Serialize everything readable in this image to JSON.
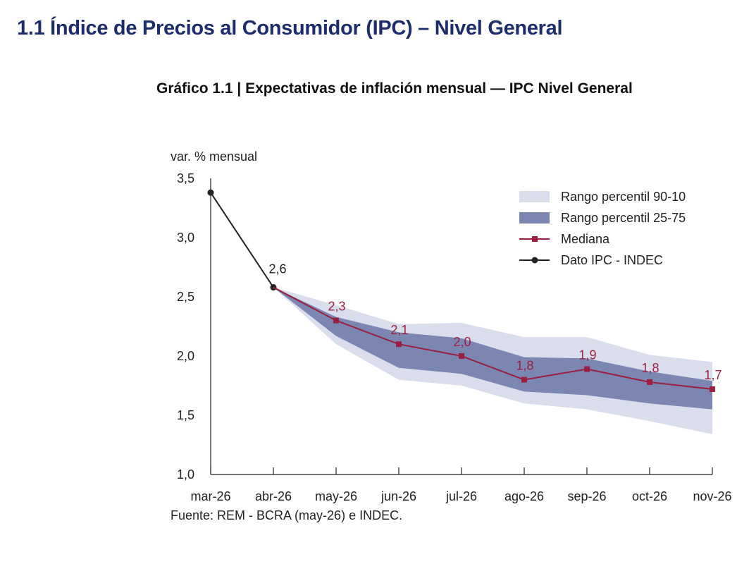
{
  "section": {
    "title": "1.1 Índice de Precios al Consumidor (IPC) – Nivel General"
  },
  "chart_data": {
    "type": "line",
    "title": "Gráfico 1.1 | Expectativas de inflación mensual — IPC Nivel General",
    "ylabel": "var. % mensual",
    "source": "Fuente: REM - BCRA (may-26) e INDEC.",
    "categories": [
      "mar-26",
      "abr-26",
      "may-26",
      "jun-26",
      "jul-26",
      "ago-26",
      "sep-26",
      "oct-26",
      "nov-26"
    ],
    "ylim": [
      1.0,
      3.5
    ],
    "yticks": [
      1.0,
      1.5,
      2.0,
      2.5,
      3.0,
      3.5
    ],
    "ytick_labels": [
      "1,0",
      "1,5",
      "2,0",
      "2,5",
      "3,0",
      "3,5"
    ],
    "legend_position": "top-right",
    "grid": false,
    "colors": {
      "range_90_10": "#dadeec",
      "range_25_75": "#7c86b3",
      "median": "#9b2040",
      "ipc": "#222222"
    },
    "series": [
      {
        "name": "Rango percentil 90-10",
        "kind": "band",
        "low": [
          null,
          2.58,
          2.1,
          1.8,
          1.75,
          1.6,
          1.55,
          1.45,
          1.34
        ],
        "high": [
          null,
          2.58,
          2.43,
          2.27,
          2.28,
          2.16,
          2.16,
          2.01,
          1.95
        ]
      },
      {
        "name": "Rango percentil 25-75",
        "kind": "band",
        "low": [
          null,
          2.58,
          2.17,
          1.9,
          1.85,
          1.7,
          1.67,
          1.6,
          1.55
        ],
        "high": [
          null,
          2.58,
          2.33,
          2.2,
          2.15,
          1.99,
          1.98,
          1.87,
          1.79
        ]
      },
      {
        "name": "Mediana",
        "kind": "line-square",
        "values": [
          null,
          2.58,
          2.3,
          2.1,
          2.0,
          1.8,
          1.89,
          1.78,
          1.72
        ],
        "labels": [
          null,
          null,
          "2,3",
          "2,1",
          "2,0",
          "1,8",
          "1,9",
          "1,8",
          "1,7"
        ]
      },
      {
        "name": "Dato IPC - INDEC",
        "kind": "line-circle",
        "values": [
          3.38,
          2.58,
          null,
          null,
          null,
          null,
          null,
          null,
          null
        ],
        "labels": [
          null,
          "2,6",
          null,
          null,
          null,
          null,
          null,
          null,
          null
        ]
      }
    ]
  }
}
